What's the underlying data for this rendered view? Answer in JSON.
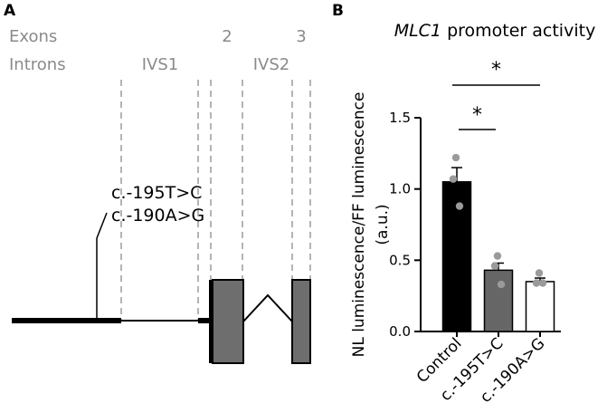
{
  "panel_a": {
    "label": "A",
    "row_labels": {
      "exons": "Exons",
      "introns": "Introns"
    },
    "exon_labels": [
      "2",
      "3"
    ],
    "intron_labels": [
      "IVS1",
      "IVS2"
    ],
    "variant_labels": [
      "c.-195T>C",
      "c.-190A>G"
    ]
  },
  "panel_b": {
    "label": "B",
    "title_gene": "MLC1",
    "title_rest": " promoter activity",
    "significance": [
      "*",
      "*"
    ]
  },
  "chart_data": {
    "type": "bar",
    "title": "MLC1 promoter activity",
    "xlabel": "",
    "ylabel": "NL luminescence/FF luminescence (a.u.)",
    "ylim": [
      0,
      1.5
    ],
    "yticks": [
      0.0,
      0.5,
      1.0,
      1.5
    ],
    "ytick_labels": [
      "0.0",
      "0.5",
      "1.0",
      "1.5"
    ],
    "categories": [
      "Control",
      "c.-195T>C",
      "c.-190A>G"
    ],
    "values": [
      1.05,
      0.43,
      0.35
    ],
    "errors": [
      0.1,
      0.05,
      0.025
    ],
    "bar_colors": [
      "#000000",
      "#666666",
      "#ffffff"
    ],
    "points": [
      [
        1.22,
        1.07,
        0.88
      ],
      [
        0.53,
        0.46,
        0.33
      ],
      [
        0.41,
        0.34,
        0.34
      ]
    ],
    "comparisons": [
      {
        "from": "Control",
        "to": "c.-195T>C",
        "label": "*"
      },
      {
        "from": "Control",
        "to": "c.-190A>G",
        "label": "*"
      }
    ]
  }
}
